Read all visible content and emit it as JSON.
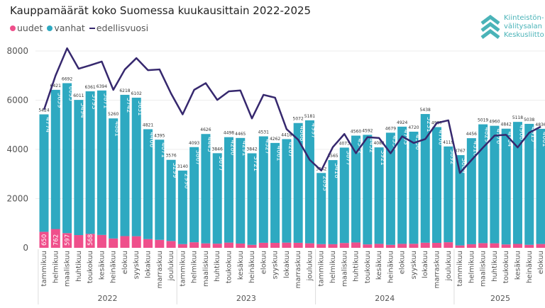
{
  "colors": {
    "uudet": "#ef4f8b",
    "vanhat": "#2ea9c1",
    "line": "#36286e"
  },
  "logo": {
    "text": [
      "Kiinteistön-",
      "välitysalan",
      "Keskusliitto"
    ]
  },
  "chart_data": {
    "type": "bar",
    "stacked": true,
    "title": "Kauppamäärät koko Suomessa kuukausittain 2022-2025",
    "legend": [
      "uudet",
      "vanhat",
      "edellisvuosi"
    ],
    "legend_placement": "top-left",
    "ylim": [
      0,
      8000
    ],
    "yticks": [
      0,
      2000,
      4000,
      6000,
      8000
    ],
    "grid": true,
    "years": [
      {
        "label": "2022",
        "months": 12
      },
      {
        "label": "2023",
        "months": 12
      },
      {
        "label": "2024",
        "months": 12
      },
      {
        "label": "2025",
        "months": 8
      }
    ],
    "month_names": [
      "tammikuu",
      "helmikuu",
      "maaliskuu",
      "huhtikuu",
      "toukokuu",
      "kesäkuu",
      "heinäkuu",
      "elokuu",
      "syyskuu",
      "lokakuu",
      "marraskuu",
      "joulukuu"
    ],
    "totals": [
      5424,
      6421,
      6692,
      6011,
      6361,
      6394,
      5260,
      6218,
      6102,
      4821,
      4395,
      3576,
      3140,
      4093,
      4626,
      3846,
      4498,
      4465,
      3842,
      4531,
      4262,
      4418,
      5072,
      5181,
      3042,
      3565,
      4073,
      4560,
      4592,
      4082,
      4679,
      4924,
      4720,
      5438,
      4907,
      4119,
      3767,
      4456,
      5019,
      4960,
      4842,
      5118,
      5038,
      4836
    ],
    "series": [
      {
        "name": "vanhat",
        "values": [
          4774,
          5659,
          6095,
          5494,
          5793,
          5871,
          4881,
          5742,
          5631,
          4466,
          4071,
          3299,
          2990,
          3867,
          4445,
          3677,
          4286,
          4291,
          3721,
          4327,
          4061,
          4207,
          4868,
          4997,
          2893,
          3418,
          3877,
          4342,
          4452,
          3921,
          4557,
          4763,
          4556,
          5231,
          4706,
          3892,
          3669,
          4310,
          4829,
          4776,
          4704,
          4960,
          4915,
          4681
        ]
      },
      {
        "name": "uudet",
        "values": [
          650,
          762,
          597,
          517,
          568,
          523,
          379,
          476,
          471,
          355,
          324,
          277,
          150,
          226,
          181,
          169,
          212,
          174,
          121,
          204,
          201,
          211,
          204,
          184,
          149,
          147,
          196,
          218,
          140,
          161,
          122,
          161,
          164,
          207,
          201,
          227,
          98,
          146,
          190,
          184,
          138,
          158,
          123,
          155
        ]
      },
      {
        "name": "edellisvuosi",
        "type": "line",
        "values": [
          5610,
          7000,
          8110,
          7280,
          7420,
          7570,
          6420,
          7250,
          7710,
          7220,
          7250,
          6270,
          5424,
          6421,
          6692,
          6011,
          6361,
          6394,
          5260,
          6218,
          6102,
          4821,
          4395,
          3576,
          3140,
          4093,
          4626,
          3846,
          4498,
          4465,
          3842,
          4531,
          4262,
          4418,
          5072,
          5181,
          3042,
          3565,
          4073,
          4560,
          4592,
          4082,
          4679,
          4924
        ]
      }
    ]
  }
}
